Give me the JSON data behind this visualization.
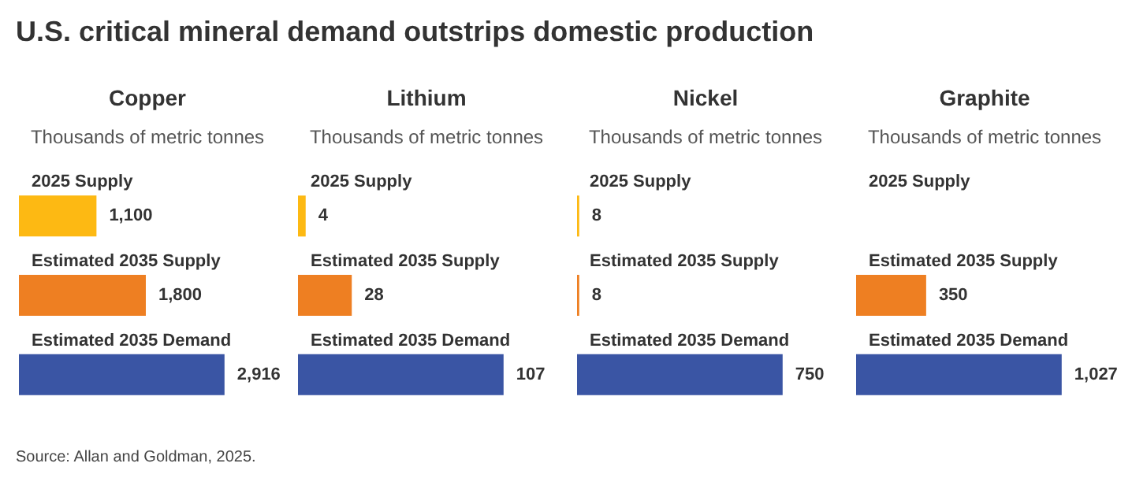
{
  "chart_data": [
    {
      "type": "other",
      "title": "U.S. critical mineral demand outstrips domestic production",
      "annotations": [
        "Source: Allan and Goldman, 2025."
      ]
    },
    {
      "type": "bar",
      "orientation": "horizontal",
      "title": "Copper",
      "subtitle": "Thousands of metric tonnes",
      "categories": [
        "2025 Supply",
        "Estimated 2035 Supply",
        "Estimated 2035 Demand"
      ],
      "values": [
        1100,
        1800,
        2916
      ],
      "value_labels": [
        "1,100",
        "1,800",
        "2,916"
      ],
      "colors": [
        "#fdb913",
        "#ee7f22",
        "#3a55a4"
      ]
    },
    {
      "type": "bar",
      "orientation": "horizontal",
      "title": "Lithium",
      "subtitle": "Thousands of metric tonnes",
      "categories": [
        "2025 Supply",
        "Estimated 2035 Supply",
        "Estimated 2035 Demand"
      ],
      "values": [
        4,
        28,
        107
      ],
      "value_labels": [
        "4",
        "28",
        "107"
      ],
      "colors": [
        "#fdb913",
        "#ee7f22",
        "#3a55a4"
      ]
    },
    {
      "type": "bar",
      "orientation": "horizontal",
      "title": "Nickel",
      "subtitle": "Thousands of metric tonnes",
      "categories": [
        "2025 Supply",
        "Estimated 2035 Supply",
        "Estimated 2035 Demand"
      ],
      "values": [
        8,
        8,
        750
      ],
      "value_labels": [
        "8",
        "8",
        "750"
      ],
      "colors": [
        "#fdb913",
        "#ee7f22",
        "#3a55a4"
      ]
    },
    {
      "type": "bar",
      "orientation": "horizontal",
      "title": "Graphite",
      "subtitle": "Thousands of metric tonnes",
      "categories": [
        "2025 Supply",
        "Estimated 2035 Supply",
        "Estimated 2035 Demand"
      ],
      "values": [
        null,
        350,
        1027
      ],
      "value_labels": [
        null,
        "350",
        "1,027"
      ],
      "colors": [
        "#fdb913",
        "#ee7f22",
        "#3a55a4"
      ]
    }
  ]
}
